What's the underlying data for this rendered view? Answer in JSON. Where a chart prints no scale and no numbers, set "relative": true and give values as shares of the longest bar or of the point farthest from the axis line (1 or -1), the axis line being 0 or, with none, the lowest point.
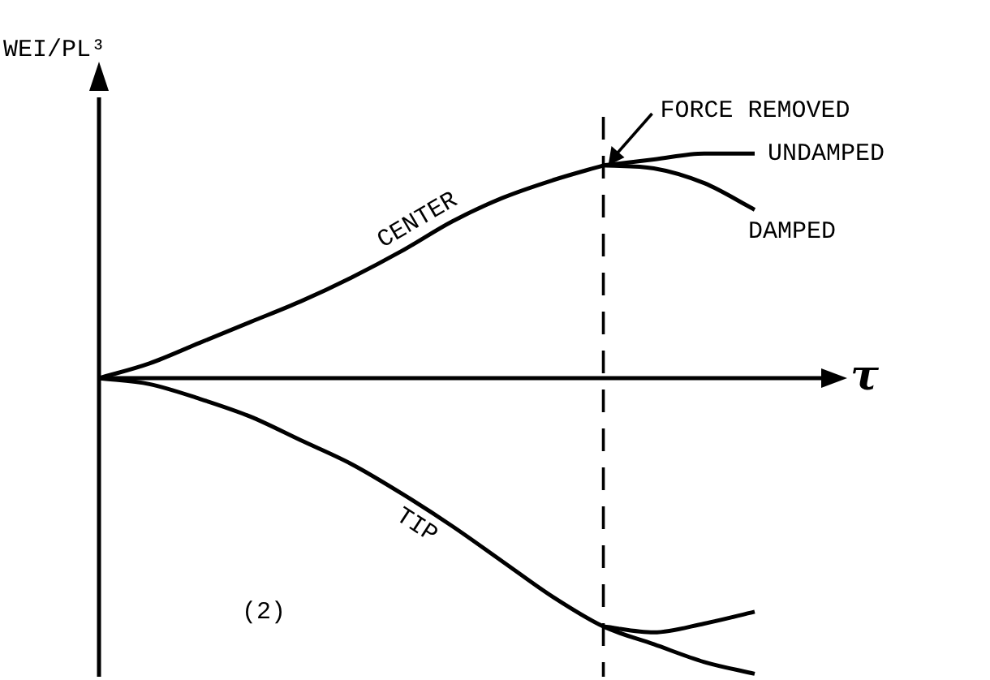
{
  "chart_data": {
    "type": "line",
    "relative": true,
    "ylabel": "WEI/PL³",
    "xlabel": "τ",
    "tick_labels": false,
    "legend": false,
    "marker": "none",
    "line_style": "solid",
    "categories": [
      null,
      null,
      null,
      null,
      null,
      null,
      null,
      null,
      null,
      null,
      null,
      null,
      null,
      null
    ],
    "series": [
      {
        "name": "CENTER",
        "color": "#000000",
        "values": [
          0,
          0.05,
          0.12,
          0.19,
          0.26,
          0.34,
          0.43,
          0.53,
          0.61,
          0.67,
          0.72,
          null,
          null,
          null
        ]
      },
      {
        "name": "UNDAMPED",
        "color": "#000000",
        "values": [
          null,
          null,
          null,
          null,
          null,
          null,
          null,
          null,
          null,
          null,
          0.72,
          0.74,
          0.76,
          0.76
        ]
      },
      {
        "name": "DAMPED",
        "color": "#000000",
        "values": [
          null,
          null,
          null,
          null,
          null,
          null,
          null,
          null,
          null,
          null,
          0.72,
          0.71,
          0.66,
          0.57
        ]
      },
      {
        "name": "TIP",
        "color": "#000000",
        "values": [
          0,
          -0.02,
          -0.07,
          -0.13,
          -0.21,
          -0.29,
          -0.39,
          -0.5,
          -0.62,
          -0.74,
          -0.84,
          -0.9,
          -0.96,
          -1
        ]
      },
      {
        "color": "#000000",
        "values": [
          null,
          null,
          null,
          null,
          null,
          null,
          null,
          null,
          null,
          null,
          -0.84,
          -0.86,
          -0.83,
          -0.79
        ]
      }
    ],
    "annotations": [
      "FORCE REMOVED",
      "(2)"
    ]
  }
}
